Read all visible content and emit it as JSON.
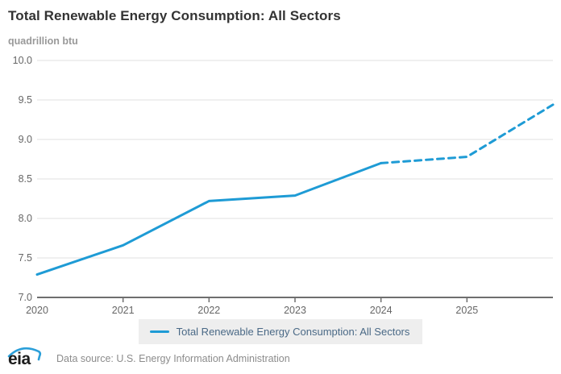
{
  "chart_data": {
    "type": "line",
    "title": "Total Renewable Energy Consumption: All Sectors",
    "unit_label": "quadrillion btu",
    "x": [
      2020,
      2021,
      2022,
      2023,
      2024,
      2025,
      2026
    ],
    "series": [
      {
        "name": "Total Renewable Energy Consumption: All Sectors",
        "values": [
          7.29,
          7.66,
          8.22,
          8.29,
          8.7,
          8.78,
          9.44
        ],
        "color": "#1e9bd5",
        "solid_through_x": 2024,
        "dashed_from_x": 2024
      }
    ],
    "xlabel": "",
    "ylabel": "quadrillion btu",
    "ylim": [
      7.0,
      10.0
    ],
    "ytick_step": 0.5,
    "ytick_labels": [
      "7.0",
      "7.5",
      "8.0",
      "8.5",
      "9.0",
      "9.5",
      "10.0"
    ],
    "xtick_labels": [
      "2020",
      "2021",
      "2022",
      "2023",
      "2024",
      "2025"
    ],
    "grid": true,
    "legend_position": "bottom"
  },
  "legend": {
    "label": "Total Renewable Energy Consumption: All Sectors"
  },
  "footer": {
    "logo_text": "eia",
    "source_text": "Data source: U.S. Energy Information Administration"
  },
  "colors": {
    "line_blue": "#1e9bd5",
    "gridline": "#e2e2e2",
    "axis": "#6e6e6e",
    "tick_label": "#666666",
    "title": "#333333",
    "unit_label": "#999999",
    "legend_bg": "#eeeeee",
    "legend_text": "#4a6986",
    "footer_text": "#8c8c8c",
    "logo_swoosh": "#2b9fd9"
  }
}
